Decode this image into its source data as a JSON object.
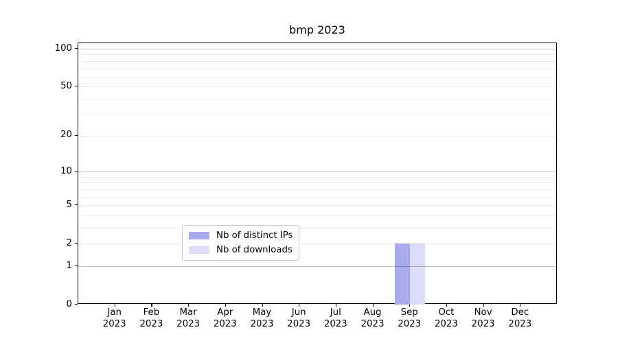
{
  "chart_data": {
    "type": "bar",
    "title": "bmp 2023",
    "categories": [
      "Jan 2023",
      "Feb 2023",
      "Mar 2023",
      "Apr 2023",
      "May 2023",
      "Jun 2023",
      "Jul 2023",
      "Aug 2023",
      "Sep 2023",
      "Oct 2023",
      "Nov 2023",
      "Dec 2023"
    ],
    "series": [
      {
        "name": "Nb of distinct IPs",
        "color": "#a9a9f0",
        "values": [
          0,
          0,
          0,
          0,
          0,
          0,
          0,
          0,
          2,
          0,
          0,
          0
        ]
      },
      {
        "name": "Nb of downloads",
        "color": "#dcdcf8",
        "values": [
          0,
          0,
          0,
          0,
          0,
          0,
          0,
          0,
          2,
          0,
          0,
          0
        ]
      }
    ],
    "xlabel": "",
    "ylabel": "",
    "yscale": "log1p",
    "ylim": [
      0,
      110
    ],
    "yticks": [
      0,
      1,
      2,
      5,
      10,
      20,
      50,
      100
    ],
    "grid_major": [
      1,
      10,
      100
    ],
    "grid_minor": [
      2,
      3,
      4,
      5,
      6,
      7,
      8,
      9,
      20,
      30,
      40,
      50,
      60,
      70,
      80,
      90
    ],
    "legend": {
      "position": "lower center"
    },
    "grid": true
  },
  "colors": {
    "axis": "#000000",
    "background": "#ffffff",
    "grid_major": "#bfbfbf",
    "grid_minor": "#ececec",
    "bar_distinct_ips": "#a9a9f0",
    "bar_downloads": "#dcdcf8"
  }
}
